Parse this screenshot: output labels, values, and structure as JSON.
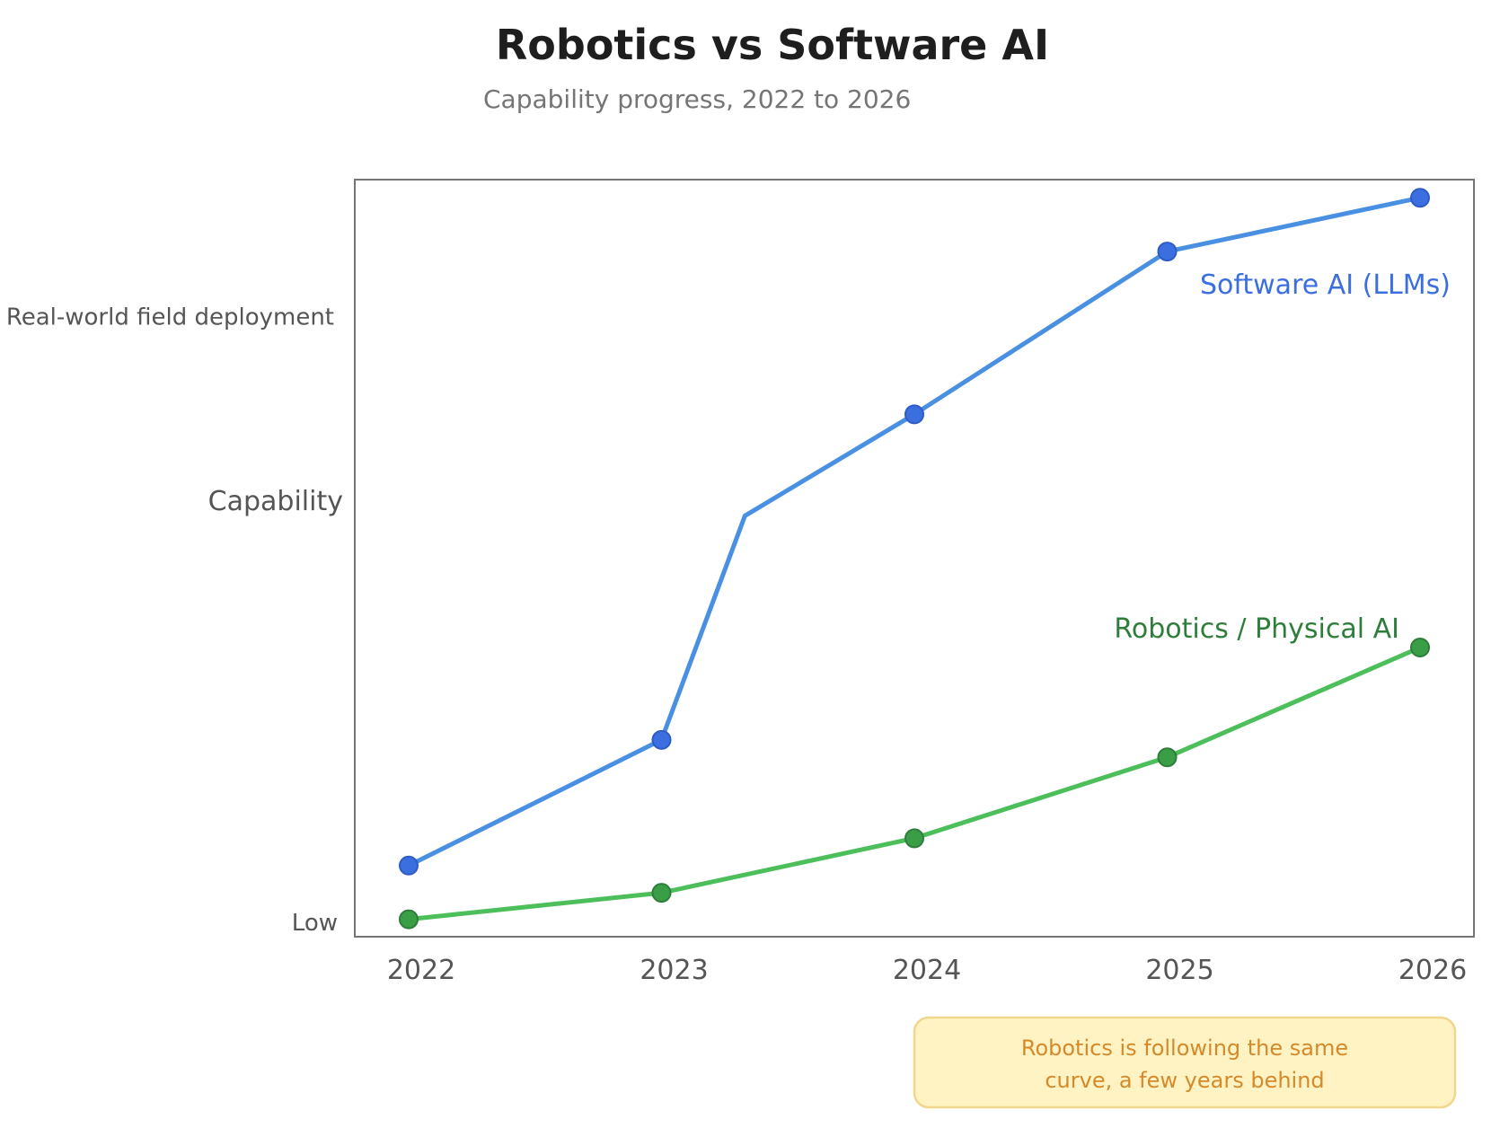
{
  "chart_data": {
    "type": "line",
    "title": "Robotics vs Software AI",
    "subtitle": "Capability progress, 2022 to 2026",
    "ylabel": "Capability",
    "y_annotations": [
      {
        "label": "Real-world field deployment",
        "value": 0.82
      },
      {
        "label": "Low",
        "value": 0.02
      }
    ],
    "ylim": [
      0,
      1
    ],
    "grid": false,
    "x": [
      "2022",
      "2023",
      "2024",
      "2025",
      "2026"
    ],
    "series": [
      {
        "name": "Software AI (LLMs)",
        "color": "#4a90e2",
        "marker_color": "#3b6fe0",
        "points": [
          [
            2022,
            0.094
          ],
          [
            2023,
            0.26
          ],
          [
            2023.33,
            0.556
          ],
          [
            2024,
            0.69
          ],
          [
            2025,
            0.905
          ],
          [
            2026,
            0.976
          ]
        ],
        "markers": [
          [
            2022,
            0.094
          ],
          [
            2023,
            0.26
          ],
          [
            2024,
            0.69
          ],
          [
            2025,
            0.905
          ],
          [
            2026,
            0.976
          ]
        ]
      },
      {
        "name": "Robotics / Physical AI",
        "color": "#4cbf5a",
        "marker_color": "#3a9e47",
        "points": [
          [
            2022,
            0.023
          ],
          [
            2023,
            0.058
          ],
          [
            2024,
            0.13
          ],
          [
            2025,
            0.237
          ],
          [
            2026,
            0.382
          ]
        ],
        "markers": [
          [
            2022,
            0.023
          ],
          [
            2023,
            0.058
          ],
          [
            2024,
            0.13
          ],
          [
            2025,
            0.237
          ],
          [
            2026,
            0.382
          ]
        ]
      }
    ],
    "callout": "Robotics is following the same curve, a few years behind",
    "colors": {
      "callout_bg": "#fff3c4",
      "callout_border": "#f0d78c",
      "callout_text": "#d48a2a",
      "frame": "#757575"
    }
  }
}
